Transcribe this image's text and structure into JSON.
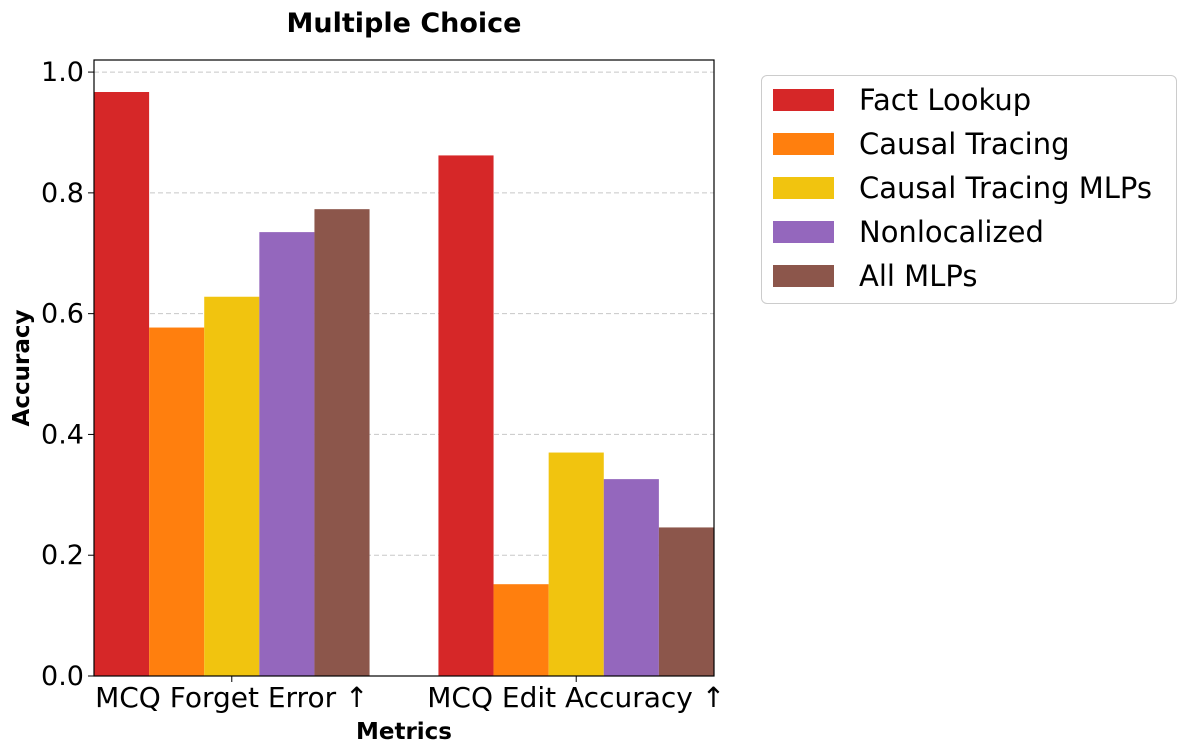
{
  "chart_data": {
    "type": "bar",
    "title": "Multiple Choice",
    "xlabel": "Metrics",
    "ylabel": "Accuracy",
    "categories": [
      "MCQ Forget Error ↑",
      "MCQ Edit Accuracy ↑"
    ],
    "ylim": [
      0,
      1.02
    ],
    "yticks": [
      "0.0",
      "0.2",
      "0.4",
      "0.6",
      "0.8",
      "1.0"
    ],
    "grid": "horizontal dashed",
    "legend_position": "outside right",
    "series": [
      {
        "name": "Fact Lookup",
        "color": "#d62728",
        "values": [
          0.967,
          0.862
        ]
      },
      {
        "name": "Causal Tracing",
        "color": "#ff7f0e",
        "values": [
          0.577,
          0.152
        ]
      },
      {
        "name": "Causal Tracing MLPs",
        "color": "#f1c40f",
        "values": [
          0.628,
          0.37
        ]
      },
      {
        "name": "Nonlocalized",
        "color": "#9467bd",
        "values": [
          0.735,
          0.326
        ]
      },
      {
        "name": "All MLPs",
        "color": "#8c564b",
        "values": [
          0.773,
          0.246
        ]
      }
    ]
  }
}
